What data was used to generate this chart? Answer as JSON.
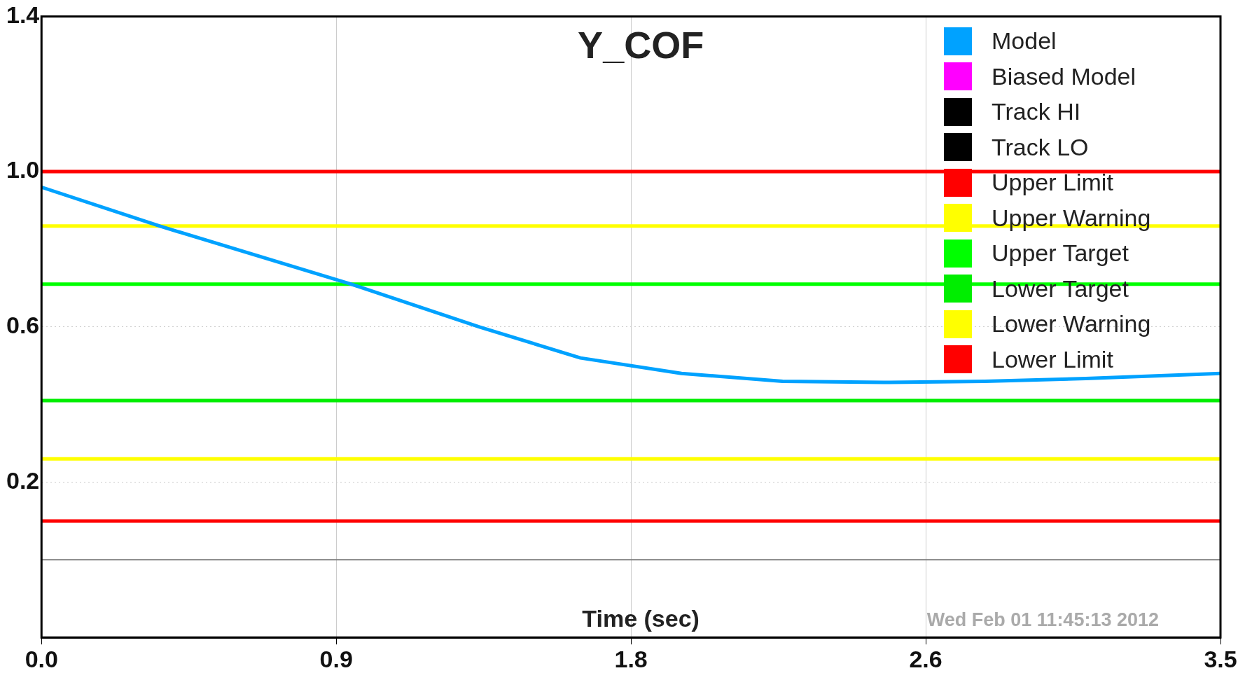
{
  "chart_data": {
    "type": "line",
    "title": "Y_COF",
    "xlabel": "Time (sec)",
    "annotations": [
      "Wed Feb 01 11:45:13 2012"
    ],
    "xlim": [
      0,
      3.5
    ],
    "xticks": [
      {
        "value": 0,
        "label": "0.0"
      },
      {
        "value": 0.875,
        "label": "0.9"
      },
      {
        "value": 1.75,
        "label": "1.8"
      },
      {
        "value": 2.625,
        "label": "2.6"
      },
      {
        "value": 3.5,
        "label": "3.5"
      }
    ],
    "ylim": [
      -0.2,
      1.4
    ],
    "yticks": [
      {
        "value": 0.2,
        "label": "0.2"
      },
      {
        "value": 0.6,
        "label": "0.6"
      },
      {
        "value": 1.0,
        "label": "1.0"
      },
      {
        "value": 1.4,
        "label": "1.4"
      }
    ],
    "grid": true,
    "legend": "top right",
    "ref_lines": [
      {
        "axis": "y",
        "value": 0,
        "color": "#808080"
      }
    ],
    "series": [
      {
        "name": "Model",
        "color": "#00a2ff",
        "x": [
          0,
          0.35,
          0.92,
          1.3,
          1.6,
          1.9,
          2.2,
          2.5,
          2.8,
          3.1,
          3.5
        ],
        "values": [
          0.96,
          0.86,
          0.71,
          0.6,
          0.52,
          0.48,
          0.46,
          0.457,
          0.46,
          0.467,
          0.48
        ]
      },
      {
        "name": "Biased Model",
        "color": "#ff00ff"
      },
      {
        "name": "Track HI",
        "color": "#000000"
      },
      {
        "name": "Track LO",
        "color": "#000000"
      },
      {
        "name": "Upper Limit",
        "color": "#ff0000",
        "x": [
          0,
          3.5
        ],
        "values": [
          1.0,
          1.0
        ]
      },
      {
        "name": "Upper Warning",
        "color": "#ffff00",
        "x": [
          0,
          3.5
        ],
        "values": [
          0.86,
          0.86
        ]
      },
      {
        "name": "Upper Target",
        "color": "#00ff00",
        "x": [
          0,
          3.5
        ],
        "values": [
          0.71,
          0.71
        ]
      },
      {
        "name": "Lower Target",
        "color": "#00ee00",
        "x": [
          0,
          3.5
        ],
        "values": [
          0.41,
          0.41
        ]
      },
      {
        "name": "Lower Warning",
        "color": "#ffff00",
        "x": [
          0,
          3.5
        ],
        "values": [
          0.26,
          0.26
        ]
      },
      {
        "name": "Lower Limit",
        "color": "#ff0000",
        "x": [
          0,
          3.5
        ],
        "values": [
          0.1,
          0.1
        ]
      }
    ]
  }
}
